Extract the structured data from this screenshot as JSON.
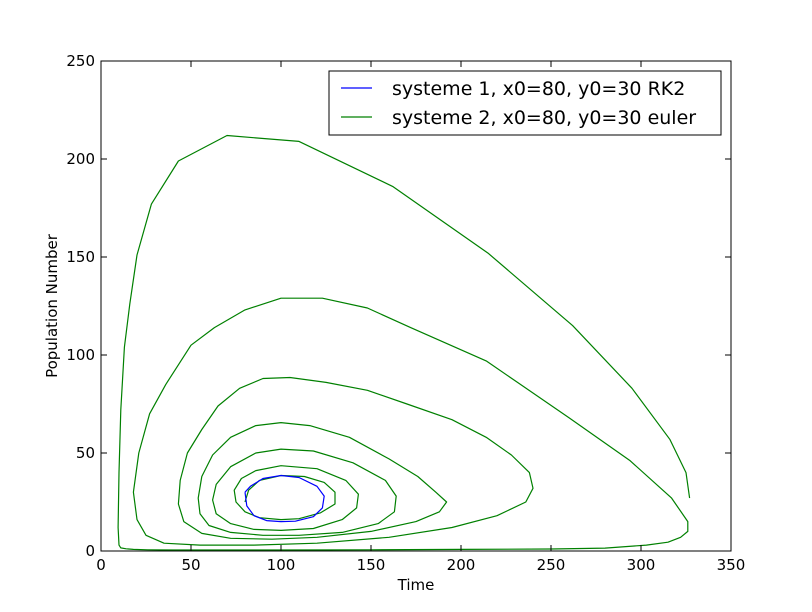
{
  "chart_data": {
    "type": "line",
    "title": "",
    "xlabel": "Time",
    "ylabel": "Population Number",
    "xlim": [
      0,
      350
    ],
    "ylim": [
      0,
      250
    ],
    "xticks": [
      "0",
      "50",
      "100",
      "150",
      "200",
      "250",
      "300",
      "350"
    ],
    "yticks": [
      "0",
      "50",
      "100",
      "150",
      "200",
      "250"
    ],
    "grid": false,
    "legend_position": "top-right",
    "series": [
      {
        "name": "systeme 1, x0=80, y0=30 RK2",
        "color": "#0000ff",
        "x": [
          80,
          83,
          90,
          100,
          110,
          120,
          124,
          123,
          118,
          108,
          100,
          92,
          85,
          81,
          80
        ],
        "y": [
          30,
          33,
          37,
          38.5,
          37.5,
          33,
          28,
          22,
          17.5,
          15.2,
          15,
          15.5,
          18,
          23,
          30
        ]
      },
      {
        "name": "systeme 2, x0=80, y0=30 euler",
        "color": "#008000",
        "x": [
          80,
          82,
          88,
          100,
          113,
          124,
          130,
          130,
          122,
          110,
          100,
          88,
          80,
          75,
          74,
          78,
          86,
          100,
          120,
          136,
          143,
          142,
          134,
          118,
          100,
          85,
          72,
          64,
          62,
          64,
          72,
          86,
          100,
          118,
          140,
          158,
          164,
          163,
          154,
          134,
          110,
          90,
          72,
          60,
          55,
          54,
          56,
          62,
          72,
          86,
          100,
          116,
          138,
          160,
          176,
          186,
          192,
          188,
          175,
          150,
          120,
          95,
          72,
          56,
          46,
          43,
          44,
          48,
          56,
          65,
          77,
          90,
          105,
          125,
          148,
          170,
          195,
          214,
          228,
          238,
          240,
          236,
          220,
          195,
          160,
          120,
          85,
          55,
          35,
          25,
          20,
          18,
          21,
          27,
          36,
          43,
          50,
          63,
          80,
          100,
          123,
          148,
          172,
          214,
          260,
          294,
          317,
          326,
          326,
          322,
          315,
          303,
          280,
          250,
          200,
          150,
          100,
          60,
          40,
          26,
          18,
          14,
          11,
          10,
          9.5,
          10,
          11,
          13,
          16,
          20,
          28,
          43,
          70,
          110,
          162,
          215,
          262,
          295,
          316,
          325,
          327
        ],
        "y": [
          25,
          31,
          36,
          38.5,
          38,
          35,
          30,
          24,
          19.5,
          16.5,
          16,
          17,
          20,
          25,
          31,
          37,
          41,
          43.5,
          42,
          36,
          29,
          22,
          16,
          11.5,
          10.5,
          11,
          14,
          19,
          26,
          34,
          43,
          50,
          52,
          51,
          45,
          36,
          28,
          20,
          14,
          9.5,
          8,
          8,
          9.5,
          13,
          19,
          27,
          38,
          49,
          58,
          64,
          65.5,
          64,
          58,
          47,
          38,
          30,
          25,
          20,
          15,
          10,
          7,
          6,
          6.5,
          9,
          15,
          24,
          36,
          50,
          62,
          74,
          83,
          88,
          88.5,
          86,
          82,
          75,
          67,
          58,
          49,
          40,
          32,
          25,
          18,
          12,
          7,
          4,
          3,
          3,
          4,
          8,
          16,
          30,
          50,
          70,
          85,
          95,
          105,
          114,
          123,
          129,
          129,
          124,
          114,
          97,
          68,
          46,
          27,
          15,
          10,
          7,
          4.5,
          3,
          1.5,
          1,
          0.8,
          0.6,
          0.5,
          0.5,
          0.5,
          0.6,
          0.8,
          1.1,
          1.6,
          3,
          12,
          40,
          72,
          104,
          126,
          151,
          177,
          199,
          212,
          209,
          186,
          152,
          115,
          83,
          57,
          40,
          27
        ]
      }
    ]
  }
}
